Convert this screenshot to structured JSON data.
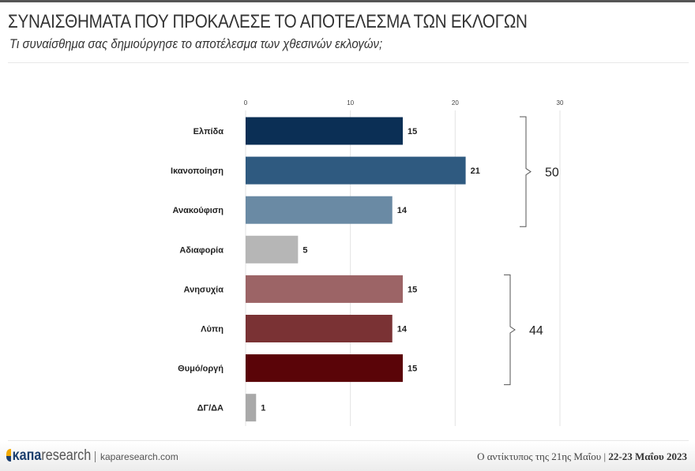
{
  "header": {
    "title": "ΣΥΝΑΙΣΘΗΜΑΤΑ ΠΟΥ ΠΡΟΚΑΛΕΣΕ ΤΟ ΑΠΟΤΕΛΕΣΜΑ ΤΩΝ ΕΚΛΟΓΩΝ",
    "subtitle": "Τι συναίσθημα σας δημιούργησε το αποτέλεσμα των χθεσινών εκλογών;"
  },
  "chart_data": {
    "type": "bar",
    "orientation": "horizontal",
    "categories": [
      "Ελπίδα",
      "Ικανοποίηση",
      "Ανακούφιση",
      "Αδιαφορία",
      "Ανησυχία",
      "Λύπη",
      "Θυμό/οργή",
      "ΔΓ/ΔΑ"
    ],
    "values": [
      15,
      21,
      14,
      5,
      15,
      14,
      15,
      1
    ],
    "colors": [
      "#0b2f55",
      "#2f5a80",
      "#6a8aa4",
      "#b6b6b6",
      "#9c6466",
      "#7a3234",
      "#5a0408",
      "#a9a9a9"
    ],
    "xlim": [
      0,
      30
    ],
    "xticks": [
      0,
      10,
      20,
      30
    ],
    "grid": true,
    "groups": [
      {
        "label": "50",
        "from": "Ελπίδα",
        "to": "Ανακούφιση"
      },
      {
        "label": "44",
        "from": "Ανησυχία",
        "to": "Θυμό/οργή"
      }
    ]
  },
  "footer": {
    "brand_bold": "κапа",
    "brand_light": "research",
    "site": "kaparesearch.com",
    "caption_left": "Ο αντίκτυπος της 21ης Μαΐου",
    "caption_right": "22-23 Μαΐου 2023"
  }
}
